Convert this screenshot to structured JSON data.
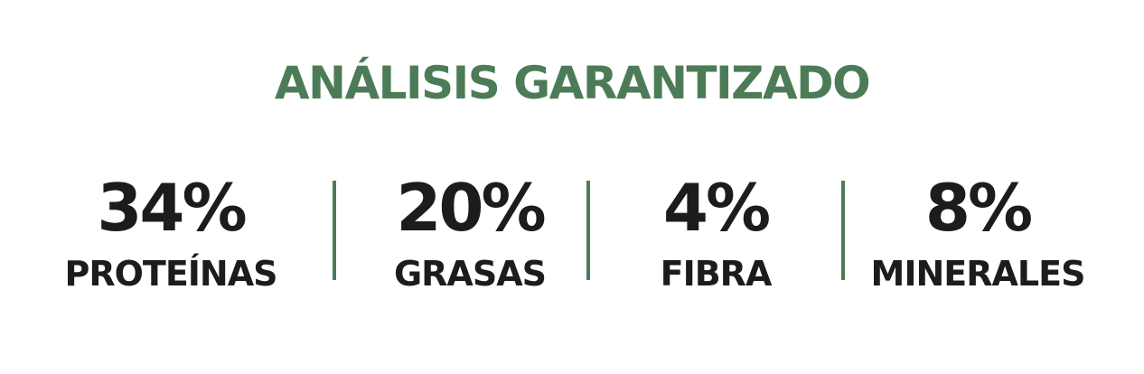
{
  "title": "ANÁLISIS GARANTIZADO",
  "stats": [
    {
      "value": "34%",
      "label": "PROTEÍNAS"
    },
    {
      "value": "20%",
      "label": "GRASAS"
    },
    {
      "value": "4%",
      "label": "FIBRA"
    },
    {
      "value": "8%",
      "label": "MINERALES"
    }
  ],
  "colors": {
    "accent": "#4c7c57",
    "text": "#1c1c1c",
    "background": "#ffffff"
  }
}
